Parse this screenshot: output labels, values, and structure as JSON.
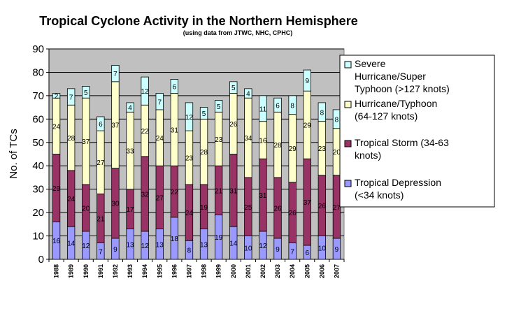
{
  "chart_data": {
    "type": "bar",
    "stacked": true,
    "title": "Tropical Cyclone Activity in the Northern Hemisphere",
    "subtitle": "(using data from JTWC, NHC, CPHC)",
    "xlabel": "",
    "ylabel": "No. of TCs",
    "ylim": [
      0,
      90
    ],
    "yticks": [
      0,
      10,
      20,
      30,
      40,
      50,
      60,
      70,
      80,
      90
    ],
    "grid": true,
    "legend_position": "right",
    "categories": [
      "1988",
      "1989",
      "1990",
      "1991",
      "1992",
      "1993",
      "1994",
      "1995",
      "1996",
      "1997",
      "1998",
      "1999",
      "2000",
      "2001",
      "2002",
      "2003",
      "2004",
      "2005",
      "2006",
      "2007"
    ],
    "series": [
      {
        "name": "Tropical Depression (<34 knots)",
        "color": "#9999ff",
        "values": [
          16,
          14,
          12,
          7,
          9,
          13,
          12,
          13,
          18,
          8,
          13,
          19,
          14,
          10,
          12,
          9,
          7,
          6,
          10,
          9
        ]
      },
      {
        "name": "Tropical Storm (34-63 knots)",
        "color": "#993366",
        "values": [
          29,
          24,
          20,
          21,
          30,
          17,
          32,
          27,
          22,
          24,
          19,
          21,
          31,
          25,
          31,
          26,
          26,
          37,
          26,
          27
        ]
      },
      {
        "name": "Hurricane/Typhoon (64-127 knots)",
        "color": "#ffffcc",
        "values": [
          24,
          28,
          37,
          27,
          37,
          33,
          22,
          24,
          31,
          23,
          28,
          23,
          26,
          34,
          16,
          28,
          29,
          29,
          23,
          20
        ]
      },
      {
        "name": "Severe Hurricane/Super Typhoon (>127 knots)",
        "color": "#ccffff",
        "values": [
          2,
          7,
          5,
          6,
          7,
          4,
          12,
          7,
          6,
          12,
          5,
          5,
          5,
          4,
          11,
          6,
          8,
          9,
          8,
          8
        ]
      }
    ],
    "legend_lines": [
      [
        "Severe",
        "Hurricane/Super",
        "Typhoon (>127 knots)"
      ],
      [
        "Hurricane/Typhoon",
        "(64-127 knots)"
      ],
      [
        "Tropical Storm (34-63",
        "knots)"
      ],
      [
        "Tropical Depression",
        "(<34 knots)"
      ]
    ],
    "colors": {
      "plot_background": "#c0c0c0",
      "gridline": "#000000",
      "bar_outline": "#000000"
    }
  }
}
